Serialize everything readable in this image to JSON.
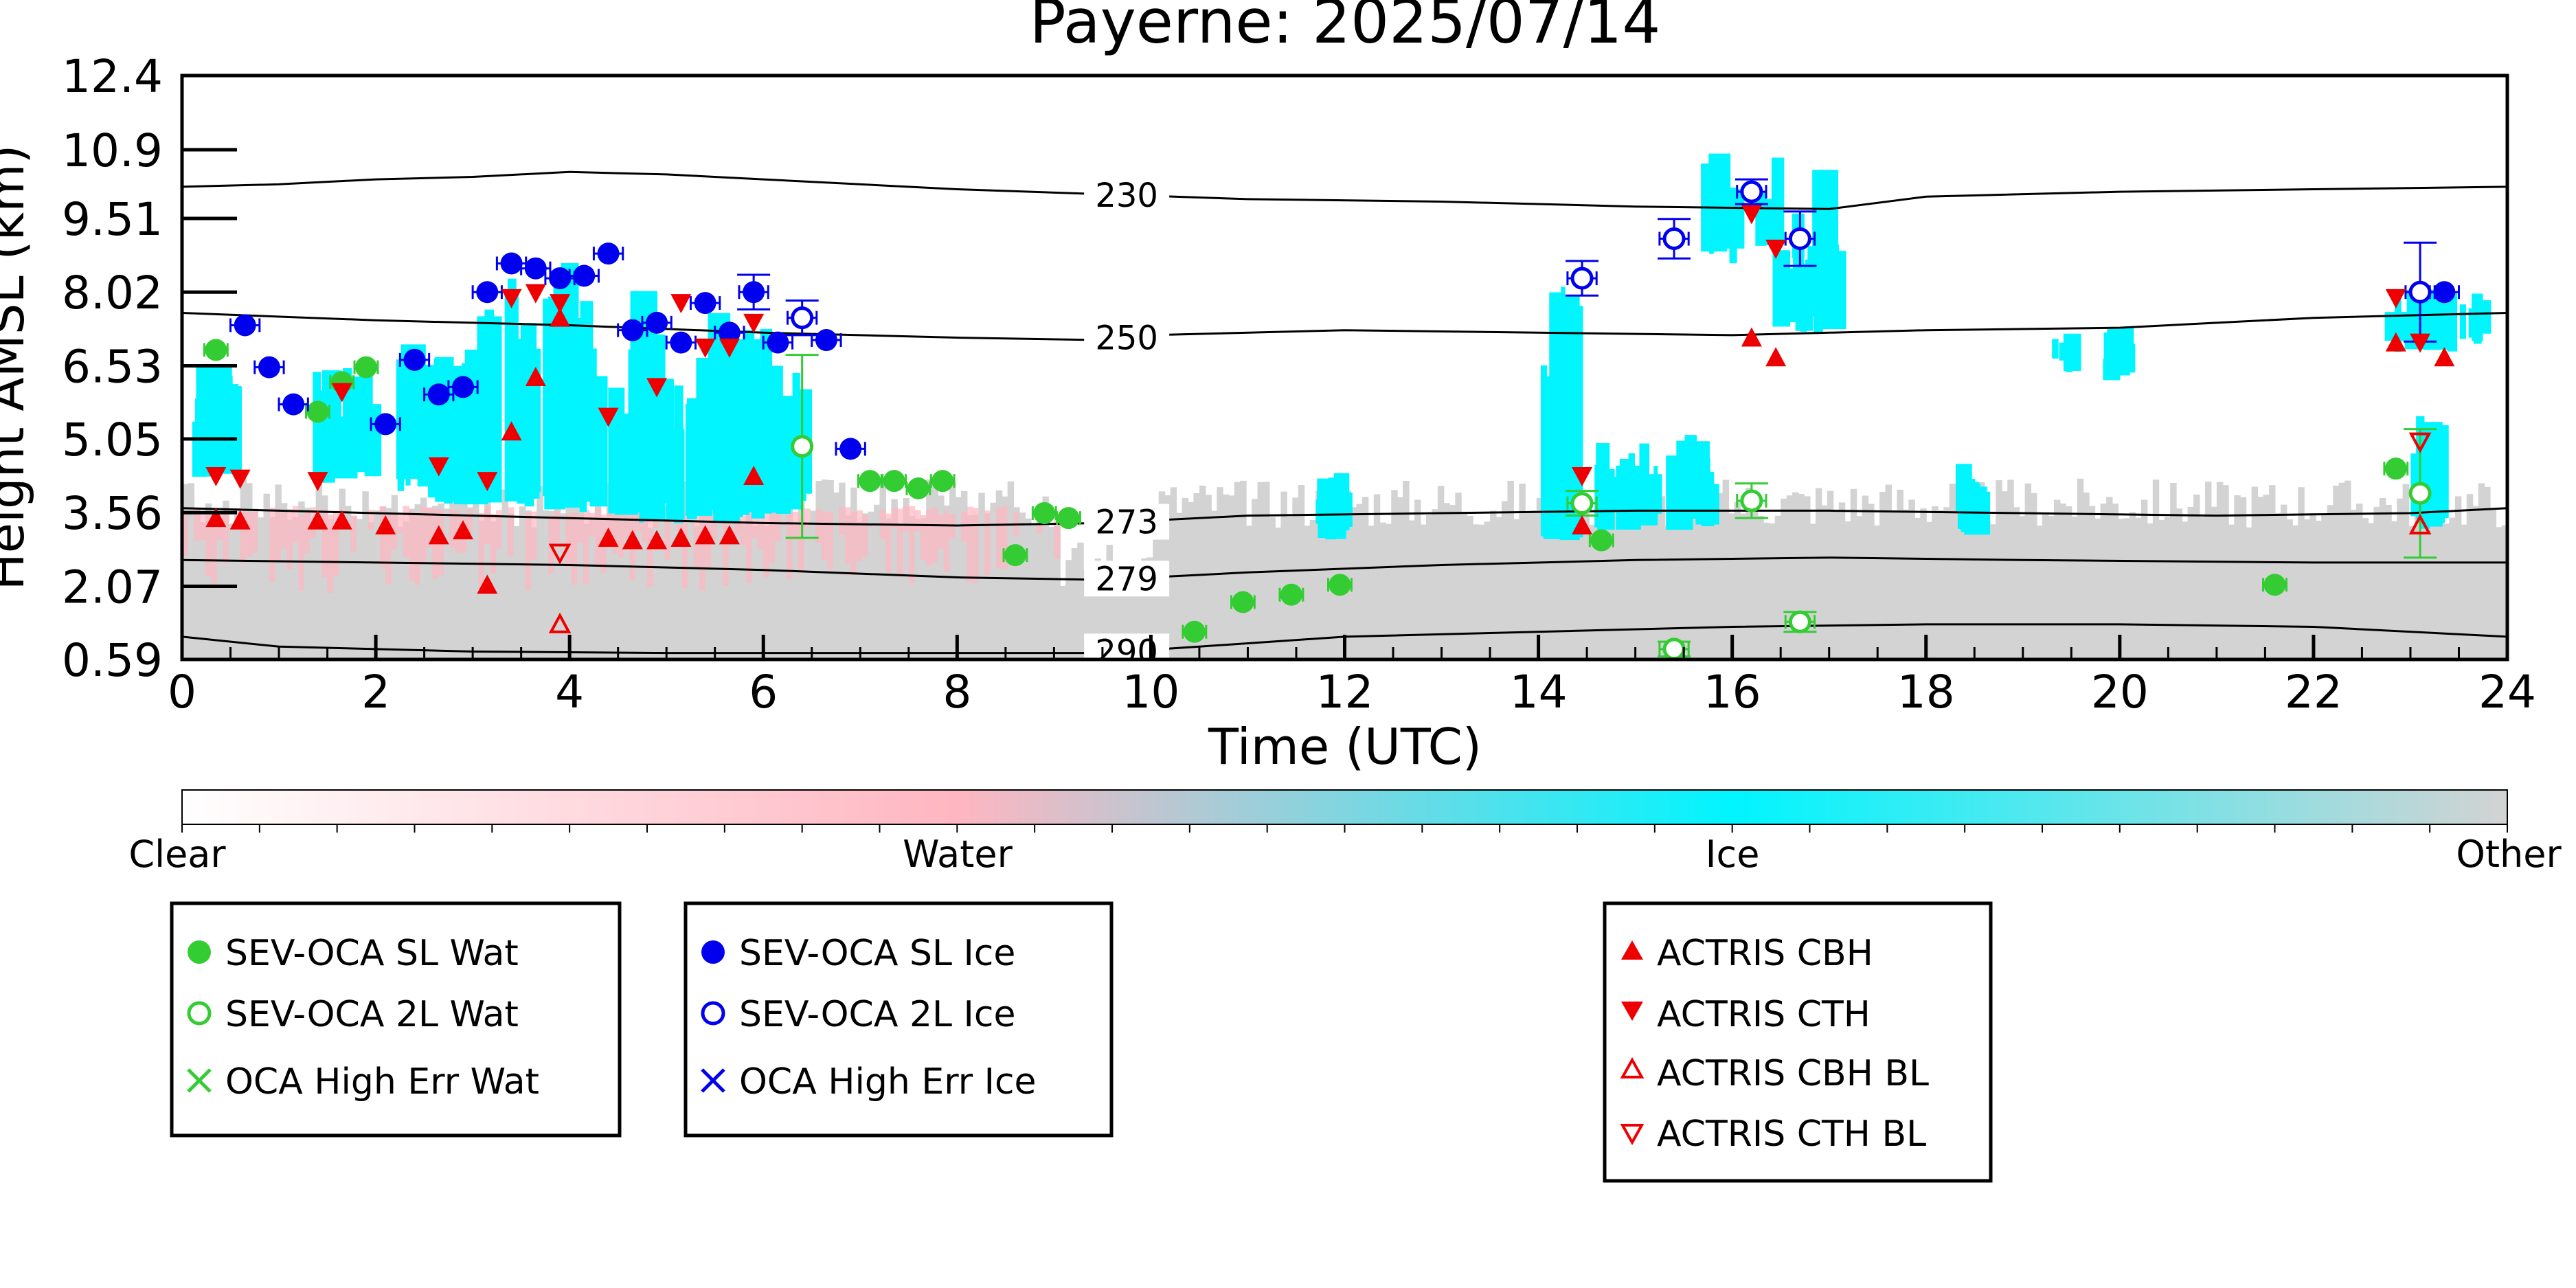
{
  "chart_data": {
    "type": "scatter",
    "title": "Payerne: 2025/07/14",
    "xlabel": "Time (UTC)",
    "ylabel": "Height AMSL (km)",
    "xlim": [
      0,
      24
    ],
    "ylim": [
      0.59,
      12.4
    ],
    "xticks": [
      0,
      2,
      4,
      6,
      8,
      10,
      12,
      14,
      16,
      18,
      20,
      22,
      24
    ],
    "yticks": [
      "0.59",
      "2.07",
      "3.56",
      "5.05",
      "6.53",
      "8.02",
      "9.51",
      "10.9",
      "12.4"
    ],
    "grid": false,
    "colorbar": {
      "labels": [
        "Clear",
        "Water",
        "Ice",
        "Other"
      ],
      "colors": [
        "#ffffff",
        "#ffb6c1",
        "#00f5ff",
        "#d3d3d3"
      ]
    },
    "contours": [
      {
        "label": "230",
        "points": [
          [
            0,
            10.15
          ],
          [
            1,
            10.2
          ],
          [
            2,
            10.3
          ],
          [
            3,
            10.35
          ],
          [
            4,
            10.45
          ],
          [
            5,
            10.4
          ],
          [
            6,
            10.3
          ],
          [
            7,
            10.2
          ],
          [
            8,
            10.1
          ],
          [
            9.5,
            10.0
          ],
          [
            11,
            9.9
          ],
          [
            13,
            9.85
          ],
          [
            15,
            9.75
          ],
          [
            17,
            9.7
          ],
          [
            18,
            9.95
          ],
          [
            20,
            10.05
          ],
          [
            22,
            10.1
          ],
          [
            24,
            10.15
          ]
        ]
      },
      {
        "label": "250",
        "points": [
          [
            0,
            7.6
          ],
          [
            2,
            7.45
          ],
          [
            4,
            7.35
          ],
          [
            6,
            7.2
          ],
          [
            8,
            7.1
          ],
          [
            9.5,
            7.05
          ],
          [
            10,
            7.15
          ],
          [
            12,
            7.25
          ],
          [
            14,
            7.2
          ],
          [
            16,
            7.15
          ],
          [
            18,
            7.25
          ],
          [
            20,
            7.3
          ],
          [
            22,
            7.5
          ],
          [
            24,
            7.6
          ]
        ]
      },
      {
        "label": "273",
        "points": [
          [
            0,
            3.65
          ],
          [
            2,
            3.55
          ],
          [
            4,
            3.45
          ],
          [
            6,
            3.35
          ],
          [
            8,
            3.3
          ],
          [
            9.5,
            3.35
          ],
          [
            11,
            3.5
          ],
          [
            13,
            3.55
          ],
          [
            15,
            3.6
          ],
          [
            17,
            3.6
          ],
          [
            19,
            3.55
          ],
          [
            21,
            3.5
          ],
          [
            23,
            3.55
          ],
          [
            24,
            3.65
          ]
        ]
      },
      {
        "label": "279",
        "points": [
          [
            0,
            2.6
          ],
          [
            2,
            2.55
          ],
          [
            4,
            2.5
          ],
          [
            6,
            2.4
          ],
          [
            8,
            2.25
          ],
          [
            9.5,
            2.2
          ],
          [
            11,
            2.35
          ],
          [
            13,
            2.5
          ],
          [
            15,
            2.6
          ],
          [
            17,
            2.65
          ],
          [
            19,
            2.6
          ],
          [
            22,
            2.55
          ],
          [
            24,
            2.55
          ]
        ]
      },
      {
        "label": "290",
        "points": [
          [
            0,
            1.05
          ],
          [
            1,
            0.85
          ],
          [
            3,
            0.75
          ],
          [
            5,
            0.72
          ],
          [
            8,
            0.72
          ],
          [
            9.5,
            0.72
          ],
          [
            10.5,
            0.85
          ],
          [
            12,
            1.05
          ],
          [
            14,
            1.15
          ],
          [
            16,
            1.25
          ],
          [
            18,
            1.3
          ],
          [
            20,
            1.3
          ],
          [
            22,
            1.25
          ],
          [
            24,
            1.05
          ]
        ]
      }
    ],
    "series": [
      {
        "name": "SEV-OCA SL Wat",
        "color": "#33cc33",
        "marker": "filled-circle",
        "x": [
          0.35,
          1.4,
          1.65,
          1.9,
          7.1,
          7.35,
          7.6,
          7.85,
          8.6,
          8.9,
          9.15,
          10.45,
          10.95,
          11.45,
          11.95,
          14.65,
          21.6,
          22.85
        ],
        "y": [
          6.85,
          5.6,
          6.2,
          6.5,
          4.2,
          4.2,
          4.05,
          4.2,
          2.7,
          3.55,
          3.45,
          1.15,
          1.75,
          1.9,
          2.1,
          3.0,
          2.1,
          4.45
        ],
        "xerr": [
          0.12,
          0.12,
          0.12,
          0.12,
          0.12,
          0.12,
          0.12,
          0.12,
          0.12,
          0.12,
          0.12,
          0.12,
          0.12,
          0.12,
          0.12,
          0.12,
          0.12,
          0.12
        ],
        "yerr": [
          0,
          0,
          0,
          0,
          0,
          0,
          0,
          0,
          0,
          0,
          0,
          0,
          0,
          0,
          0,
          0,
          0,
          0
        ]
      },
      {
        "name": "SEV-OCA 2L Wat",
        "color": "#33cc33",
        "marker": "open-circle",
        "x": [
          6.4,
          14.45,
          15.4,
          16.2,
          16.7,
          23.1
        ],
        "y": [
          4.9,
          3.75,
          0.8,
          3.8,
          1.35,
          3.95
        ],
        "xerr": [
          0,
          0.15,
          0.15,
          0.15,
          0.15,
          0
        ],
        "yerr": [
          1.85,
          0.25,
          0.15,
          0.35,
          0.2,
          1.3
        ]
      },
      {
        "name": "OCA High Err Wat",
        "color": "#33cc33",
        "marker": "x",
        "x": [],
        "y": []
      },
      {
        "name": "SEV-OCA SL Ice",
        "color": "#0000ee",
        "marker": "filled-circle",
        "x": [
          0.65,
          0.9,
          1.15,
          2.1,
          2.4,
          2.65,
          2.9,
          3.15,
          3.4,
          3.65,
          3.9,
          4.15,
          4.4,
          4.65,
          4.9,
          5.15,
          5.4,
          5.65,
          5.9,
          6.15,
          6.65,
          6.9,
          23.35
        ],
        "y": [
          7.35,
          6.5,
          5.75,
          5.35,
          6.65,
          5.95,
          6.1,
          8.02,
          8.6,
          8.5,
          8.3,
          8.35,
          8.8,
          7.25,
          7.4,
          7.0,
          7.8,
          7.2,
          8.02,
          7.0,
          7.05,
          4.85,
          8.02
        ],
        "xerr": [
          0.15,
          0.15,
          0.15,
          0.15,
          0.15,
          0.15,
          0.15,
          0.15,
          0.15,
          0.15,
          0.15,
          0.15,
          0.15,
          0.15,
          0.15,
          0.15,
          0.15,
          0.15,
          0.15,
          0.15,
          0.15,
          0.15,
          0.15
        ],
        "yerr": [
          0,
          0,
          0,
          0,
          0,
          0,
          0,
          0,
          0,
          0,
          0,
          0,
          0,
          0,
          0,
          0,
          0,
          0,
          0.35,
          0,
          0,
          0,
          0
        ]
      },
      {
        "name": "SEV-OCA 2L Ice",
        "color": "#0000ee",
        "marker": "open-circle",
        "x": [
          6.4,
          14.45,
          15.4,
          16.2,
          16.7,
          23.1
        ],
        "y": [
          7.5,
          8.3,
          9.1,
          10.05,
          9.1,
          8.02
        ],
        "xerr": [
          0.15,
          0.15,
          0.15,
          0.15,
          0.15,
          0.15
        ],
        "yerr": [
          0.35,
          0.35,
          0.4,
          0.25,
          0.55,
          1.0
        ]
      },
      {
        "name": "OCA High Err Ice",
        "color": "#0000ee",
        "marker": "x",
        "x": [],
        "y": []
      },
      {
        "name": "ACTRIS CBH",
        "color": "#ee0000",
        "marker": "filled-triangle-up",
        "x": [
          0.35,
          0.6,
          1.4,
          1.65,
          2.1,
          2.65,
          2.9,
          3.15,
          3.4,
          3.65,
          3.9,
          4.4,
          4.65,
          4.9,
          5.15,
          5.4,
          5.65,
          5.9,
          14.45,
          16.2,
          16.45,
          22.85,
          23.35
        ],
        "y": [
          3.45,
          3.4,
          3.4,
          3.4,
          3.3,
          3.1,
          3.2,
          2.1,
          5.2,
          6.3,
          7.5,
          3.05,
          3.0,
          3.0,
          3.05,
          3.1,
          3.1,
          4.3,
          3.3,
          7.1,
          6.7,
          7.0,
          6.7
        ]
      },
      {
        "name": "ACTRIS CTH",
        "color": "#ee0000",
        "marker": "filled-triangle-down",
        "x": [
          0.35,
          0.6,
          1.4,
          1.65,
          2.65,
          3.15,
          3.4,
          3.65,
          3.9,
          4.4,
          4.9,
          5.15,
          5.4,
          5.65,
          5.9,
          14.45,
          16.2,
          16.45,
          22.85,
          23.1
        ],
        "y": [
          4.3,
          4.25,
          4.2,
          6.0,
          4.5,
          4.2,
          7.9,
          8.0,
          7.8,
          5.5,
          6.1,
          7.8,
          6.9,
          6.9,
          7.4,
          4.3,
          9.6,
          8.9,
          7.9,
          7.0
        ]
      },
      {
        "name": "ACTRIS CBH BL",
        "color": "#ee0000",
        "marker": "open-triangle-up",
        "x": [
          3.9,
          23.1
        ],
        "y": [
          1.3,
          3.3
        ]
      },
      {
        "name": "ACTRIS CTH BL",
        "color": "#ee0000",
        "marker": "open-triangle-down",
        "x": [
          3.9,
          23.1
        ],
        "y": [
          2.75,
          5.0
        ]
      }
    ]
  }
}
